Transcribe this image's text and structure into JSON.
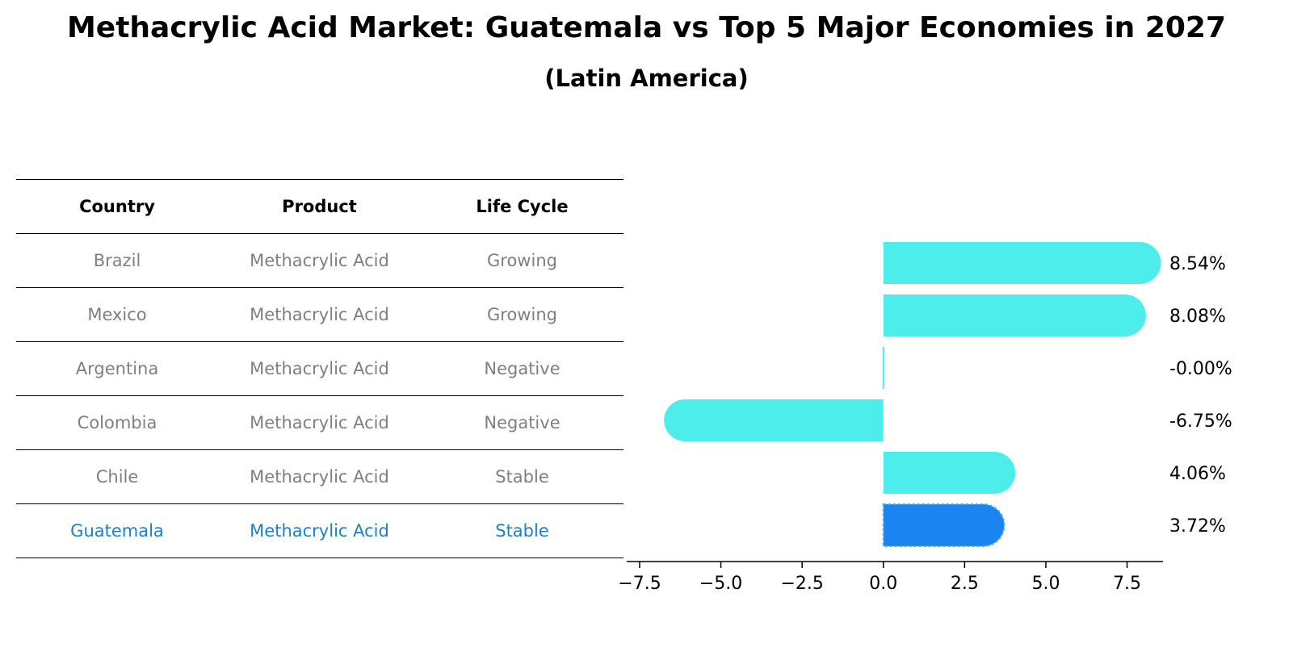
{
  "chart_data": {
    "type": "bar",
    "orientation": "horizontal",
    "title": "Methacrylic Acid Market: Guatemala vs Top 5 Major Economies in 2027",
    "subtitle": "(Latin America)",
    "categories": [
      "Brazil",
      "Mexico",
      "Argentina",
      "Colombia",
      "Chile",
      "Guatemala"
    ],
    "values": [
      8.54,
      8.08,
      -0.0,
      -6.75,
      4.06,
      3.72
    ],
    "value_labels": [
      "8.54%",
      "8.08%",
      "-0.00%",
      "-6.75%",
      "4.06%",
      "3.72%"
    ],
    "highlight": "Guatemala",
    "xlim": [
      -7.5,
      9.3
    ],
    "xticks": [
      -7.5,
      -5.0,
      -2.5,
      0.0,
      2.5,
      5.0,
      7.5
    ],
    "xtick_labels": [
      "−7.5",
      "−5.0",
      "−2.5",
      "0.0",
      "2.5",
      "5.0",
      "7.5"
    ],
    "colors": {
      "default": "#4dedec",
      "highlight": "#1a85f0"
    }
  },
  "table": {
    "headers": {
      "country": "Country",
      "product": "Product",
      "life_cycle": "Life Cycle"
    },
    "rows": [
      {
        "country": "Brazil",
        "product": "Methacrylic Acid",
        "life_cycle": "Growing"
      },
      {
        "country": "Mexico",
        "product": "Methacrylic Acid",
        "life_cycle": "Growing"
      },
      {
        "country": "Argentina",
        "product": "Methacrylic Acid",
        "life_cycle": "Negative"
      },
      {
        "country": "Colombia",
        "product": "Methacrylic Acid",
        "life_cycle": "Negative"
      },
      {
        "country": "Chile",
        "product": "Methacrylic Acid",
        "life_cycle": "Stable"
      },
      {
        "country": "Guatemala",
        "product": "Methacrylic Acid",
        "life_cycle": "Stable"
      }
    ]
  }
}
